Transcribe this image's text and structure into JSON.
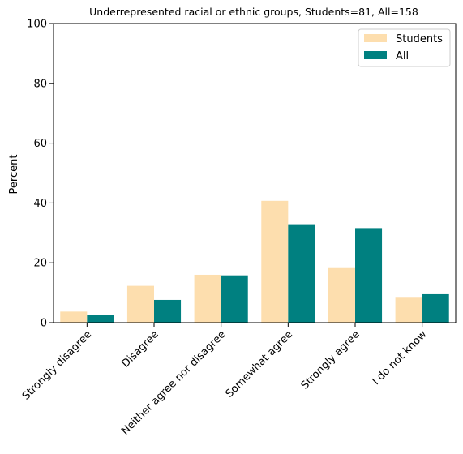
{
  "chart_data": {
    "type": "bar",
    "title": "Underrepresented racial or ethnic groups, Students=81, All=158",
    "xlabel": "",
    "ylabel": "Percent",
    "ylim": [
      0,
      100
    ],
    "yticks": [
      "0",
      "20",
      "40",
      "60",
      "80",
      "100"
    ],
    "categories": [
      "Strongly disagree",
      "Disagree",
      "Neither agree nor disagree",
      "Somewhat agree",
      "Strongly agree",
      "I do not know"
    ],
    "series": [
      {
        "name": "Students",
        "color": "#FDDEAE",
        "values": [
          3.7,
          12.3,
          16.0,
          40.7,
          18.5,
          8.6
        ]
      },
      {
        "name": "All",
        "color": "#008080",
        "values": [
          2.5,
          7.6,
          15.8,
          32.9,
          31.6,
          9.5
        ]
      }
    ],
    "legend_position": "top-right",
    "grid": false
  }
}
